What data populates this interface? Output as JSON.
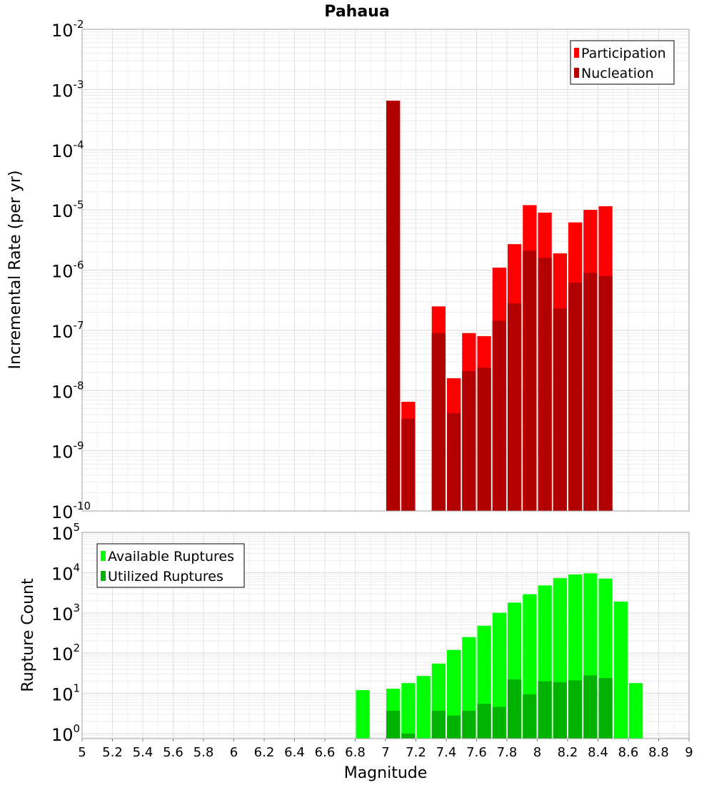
{
  "chart_data": [
    {
      "type": "bar",
      "title": "Pahaua",
      "ylabel": "Incremental Rate (per yr)",
      "xlabel": "",
      "y_scale": "log",
      "ylim": [
        1e-10,
        0.01
      ],
      "xlim": [
        5,
        9
      ],
      "y_tick_exponents": [
        "-10",
        "-9",
        "-8",
        "-7",
        "-6",
        "-5",
        "-4",
        "-3",
        "-2"
      ],
      "legend": {
        "placement": "top-right"
      },
      "bin_width": 0.1,
      "series": [
        {
          "name": "Participation",
          "color": "#ff0000",
          "x": [
            7.05,
            7.15,
            7.35,
            7.45,
            7.55,
            7.65,
            7.75,
            7.85,
            7.95,
            8.05,
            8.15,
            8.25,
            8.35,
            8.45
          ],
          "values": [
            0.00065,
            6.5e-09,
            2.5e-07,
            1.6e-08,
            9e-08,
            8e-08,
            1.1e-06,
            2.7e-06,
            1.2e-05,
            9e-06,
            1.9e-06,
            6.2e-06,
            1e-05,
            1.15e-05
          ]
        },
        {
          "name": "Nucleation",
          "color": "#b20000",
          "x": [
            7.05,
            7.15,
            7.35,
            7.45,
            7.55,
            7.65,
            7.75,
            7.85,
            7.95,
            8.05,
            8.15,
            8.25,
            8.35,
            8.45
          ],
          "values": [
            0.00065,
            3.4e-09,
            9e-08,
            4.2e-09,
            2.1e-08,
            2.4e-08,
            1.45e-07,
            2.8e-07,
            2.1e-06,
            1.6e-06,
            2.3e-07,
            6.2e-07,
            9e-07,
            8e-07
          ]
        }
      ]
    },
    {
      "type": "bar",
      "title": "",
      "ylabel": "Rupture Count",
      "xlabel": "Magnitude",
      "y_scale": "log",
      "ylim": [
        0.75,
        100000.0
      ],
      "xlim": [
        5,
        9
      ],
      "y_tick_exponents": [
        "0",
        "1",
        "2",
        "3",
        "4",
        "5"
      ],
      "x_ticks": [
        "5",
        "5.2",
        "5.4",
        "5.6",
        "5.8",
        "6",
        "6.2",
        "6.4",
        "6.6",
        "6.8",
        "7",
        "7.2",
        "7.4",
        "7.6",
        "7.8",
        "8",
        "8.2",
        "8.4",
        "8.6",
        "8.8",
        "9"
      ],
      "legend": {
        "placement": "top-left"
      },
      "bin_width": 0.1,
      "series": [
        {
          "name": "Available Ruptures",
          "color": "#00ff00",
          "x": [
            6.85,
            7.05,
            7.15,
            7.25,
            7.35,
            7.45,
            7.55,
            7.65,
            7.75,
            7.85,
            7.95,
            8.05,
            8.15,
            8.25,
            8.35,
            8.45,
            8.55,
            8.65
          ],
          "values": [
            12,
            13,
            18,
            27,
            55,
            120,
            250,
            480,
            1000,
            1800,
            2900,
            4800,
            7300,
            9000,
            9600,
            7100,
            1900,
            18
          ]
        },
        {
          "name": "Utilized Ruptures",
          "color": "#00b200",
          "x": [
            7.05,
            7.15,
            7.35,
            7.45,
            7.55,
            7.65,
            7.75,
            7.85,
            7.95,
            8.05,
            8.15,
            8.25,
            8.35,
            8.45
          ],
          "values": [
            3.7,
            1,
            3.7,
            2.8,
            3.7,
            5.5,
            4.6,
            22,
            9.5,
            20,
            19,
            21,
            28,
            24
          ]
        }
      ]
    }
  ]
}
